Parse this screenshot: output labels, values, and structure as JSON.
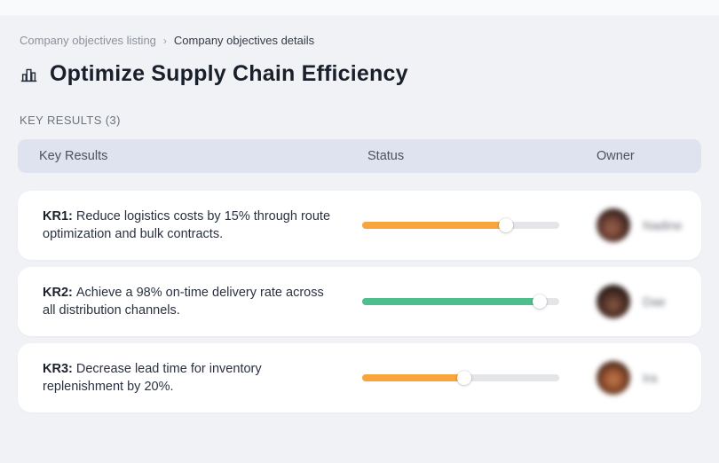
{
  "breadcrumb": {
    "items": [
      "Company objectives listing",
      "Company objectives details"
    ],
    "separator": "›"
  },
  "header": {
    "title": "Optimize Supply Chain Efficiency",
    "title_icon": "buildings-icon"
  },
  "section": {
    "label": "KEY RESULTS (3)"
  },
  "table": {
    "headers": {
      "key_results": "Key Results",
      "status": "Status",
      "owner": "Owner"
    }
  },
  "rows": [
    {
      "id": "KR1:",
      "text": "Reduce logistics costs by 15% through route optimization and bulk contracts.",
      "progress_percent": 73,
      "bar_color": "#F9A43C",
      "owner_name": "Nadine",
      "owner_name_blurred": true
    },
    {
      "id": "KR2:",
      "text": "Achieve a 98% on-time delivery rate across all distribution channels.",
      "progress_percent": 90,
      "bar_color": "#4EBE8C",
      "owner_name": "Dae",
      "owner_name_blurred": true
    },
    {
      "id": "KR3:",
      "text": "Decrease lead time for inventory replenishment by 20%.",
      "progress_percent": 52,
      "bar_color": "#F9A43C",
      "owner_name": "Ira",
      "owner_name_blurred": true
    }
  ],
  "colors": {
    "background": "#f1f2f5",
    "table_header_bg": "#dfe3f0",
    "progress_track": "#e4e5e8",
    "progress_orange": "#F9A43C",
    "progress_green": "#4EBE8C"
  }
}
